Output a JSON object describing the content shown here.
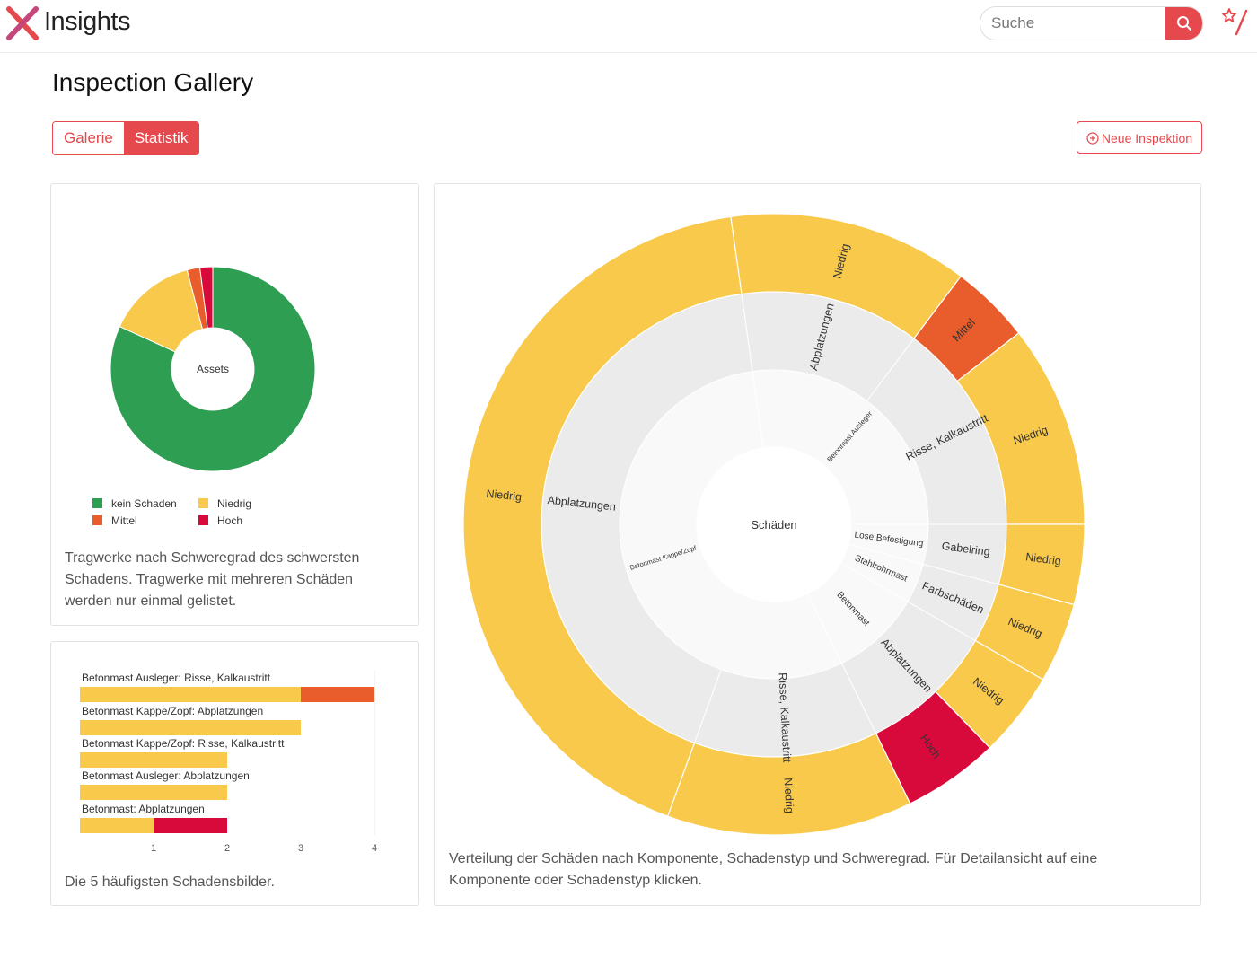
{
  "header": {
    "brand": "Insights",
    "search_placeholder": "Suche",
    "icons": {
      "logo": "x-logo-icon",
      "search": "search-icon",
      "favorite": "star-pen-icon"
    },
    "accent": "#e5484d"
  },
  "page": {
    "title": "Inspection Gallery",
    "tabs": [
      {
        "label": "Galerie",
        "active": false
      },
      {
        "label": "Statistik",
        "active": true
      }
    ],
    "new_inspection_label": "Neue Inspektion"
  },
  "colors": {
    "kein": "#2e9e53",
    "niedrig": "#f8c94a",
    "mittel": "#e85d2b",
    "hoch": "#d80a3c",
    "grey_inner": "#f9f9f9",
    "grey_mid": "#ebebeb"
  },
  "donut": {
    "center_label": "Assets",
    "legend": [
      {
        "label": "kein Schaden",
        "color": "#2e9e53"
      },
      {
        "label": "Niedrig",
        "color": "#f8c94a"
      },
      {
        "label": "Mittel",
        "color": "#e85d2b"
      },
      {
        "label": "Hoch",
        "color": "#d80a3c"
      }
    ],
    "caption": "Tragwerke nach Schweregrad des schwersten Schadens. Tragwerke mit mehreren Schäden werden nur einmal gelistet."
  },
  "bar_card": {
    "caption": "Die 5 häufigsten Schadensbilder."
  },
  "sunburst": {
    "center_label": "Schäden",
    "caption": "Verteilung der Schäden nach Komponente, Schadenstyp und Schweregrad. Für Detailansicht auf eine Komponente oder Schadenstyp klicken."
  },
  "chart_data": [
    {
      "type": "pie",
      "categories": [
        "kein Schaden",
        "Niedrig",
        "Mittel",
        "Hoch"
      ],
      "values": [
        81,
        14,
        2,
        2
      ]
    },
    {
      "type": "bar",
      "orientation": "horizontal",
      "stacked": true,
      "categories": [
        "Betonmast Ausleger: Risse, Kalkaustritt",
        "Betonmast Kappe/Zopf: Abplatzungen",
        "Betonmast Kappe/Zopf: Risse, Kalkaustritt",
        "Betonmast Ausleger: Abplatzungen",
        "Betonmast: Abplatzungen"
      ],
      "series": [
        {
          "values": [
            3,
            3,
            2,
            2,
            1
          ],
          "color": "#f8c94a"
        },
        {
          "values": [
            1,
            0,
            0,
            0,
            0
          ],
          "color": "#e85d2b"
        },
        {
          "values": [
            0,
            0,
            0,
            0,
            1
          ],
          "color": "#d80a3c"
        }
      ],
      "x_ticks": [
        "1",
        "2",
        "3",
        "4"
      ],
      "xlim": [
        0,
        4
      ]
    },
    {
      "type": "sunburst",
      "start_angle_deg": -8,
      "total": 360,
      "segments": [
        {
          "label": "Betonmast Ausleger",
          "level": 1,
          "size": 98,
          "children": [
            {
              "label": "Abplatzungen",
              "level": 2,
              "size": 45,
              "children": [
                {
                  "label": "Niedrig",
                  "level": 3,
                  "size": 45,
                  "color": "#f8c94a"
                }
              ]
            },
            {
              "label": "Risse, Kalkaustritt",
              "level": 2,
              "size": 53,
              "children": [
                {
                  "label": "Mittel",
                  "level": 3,
                  "size": 15,
                  "color": "#e85d2b"
                },
                {
                  "label": "Niedrig",
                  "level": 3,
                  "size": 38,
                  "color": "#f8c94a"
                }
              ]
            }
          ]
        },
        {
          "label": "Lose Befestigung",
          "level": 1,
          "size": 15,
          "children": [
            {
              "label": "Gabelring",
              "level": 2,
              "size": 15,
              "children": [
                {
                  "label": "Niedrig",
                  "level": 3,
                  "size": 15,
                  "color": "#f8c94a"
                }
              ]
            }
          ]
        },
        {
          "label": "Stahlrohrmast",
          "level": 1,
          "size": 15,
          "children": [
            {
              "label": "Farbschäden",
              "level": 2,
              "size": 15,
              "children": [
                {
                  "label": "Niedrig",
                  "level": 3,
                  "size": 15,
                  "color": "#f8c94a"
                }
              ]
            }
          ]
        },
        {
          "label": "Betonmast",
          "level": 1,
          "size": 34,
          "children": [
            {
              "label": "Abplatzungen",
              "level": 2,
              "size": 34,
              "children": [
                {
                  "label": "Niedrig",
                  "level": 3,
                  "size": 16,
                  "color": "#f8c94a"
                },
                {
                  "label": "Hoch",
                  "level": 3,
                  "size": 18,
                  "color": "#d80a3c"
                }
              ]
            }
          ]
        },
        {
          "label": "Betonmast Kappe/Zopf",
          "level": 1,
          "size": 198,
          "children": [
            {
              "label": "Risse, Kalkaustritt",
              "level": 2,
              "size": 46,
              "children": [
                {
                  "label": "Niedrig",
                  "level": 3,
                  "size": 46,
                  "color": "#f8c94a"
                }
              ]
            },
            {
              "label": "Abplatzungen",
              "level": 2,
              "size": 152,
              "children": [
                {
                  "label": "Niedrig",
                  "level": 3,
                  "size": 152,
                  "color": "#f8c94a"
                }
              ]
            }
          ]
        }
      ]
    }
  ]
}
